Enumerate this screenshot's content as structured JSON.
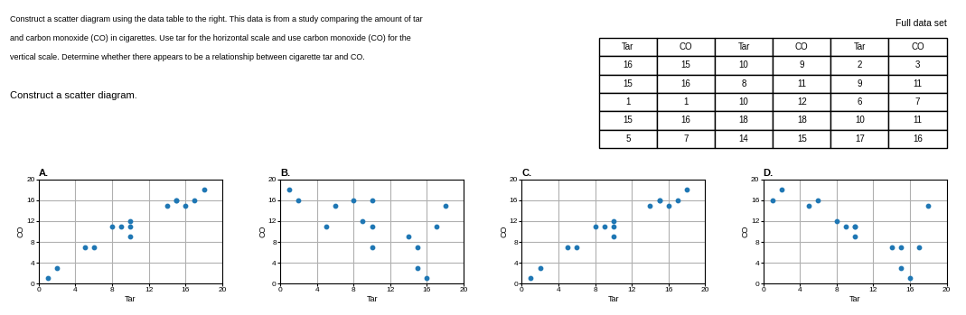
{
  "chart_data": [
    {
      "type": "text",
      "annotations": [
        "Construct a scatter diagram using the data table to the right. This data is from a study comparing the amount of tar",
        "and carbon monoxide (CO) in cigarettes. Use tar for the horizontal scale and use carbon monoxide (CO) for the",
        "vertical scale. Determine whether there appears to be a relationship between cigarette tar and CO.",
        "Construct a scatter diagram."
      ]
    },
    {
      "type": "table",
      "title": "Full data set",
      "categories": [
        "Tar",
        "CO",
        "Tar",
        "CO",
        "Tar",
        "CO"
      ],
      "values": [
        [
          16,
          15,
          10,
          9,
          2,
          3
        ],
        [
          15,
          16,
          8,
          11,
          9,
          11
        ],
        [
          1,
          1,
          10,
          12,
          6,
          7
        ],
        [
          15,
          16,
          18,
          18,
          10,
          11
        ],
        [
          5,
          7,
          14,
          15,
          17,
          16
        ]
      ]
    },
    {
      "type": "scatter",
      "title": "A.",
      "xlabel": "Tar",
      "ylabel": "CO",
      "x": [
        16,
        15,
        1,
        15,
        5,
        10,
        8,
        10,
        18,
        14,
        2,
        9,
        6,
        10,
        17
      ],
      "values": [
        15,
        16,
        1,
        16,
        7,
        9,
        11,
        12,
        18,
        15,
        3,
        11,
        7,
        11,
        16
      ],
      "xlim": [
        0,
        20
      ],
      "ylim": [
        0,
        20
      ],
      "xticks": [
        0,
        4,
        8,
        12,
        16,
        20
      ],
      "yticks": [
        0,
        4,
        8,
        12,
        16,
        20
      ],
      "grid": true
    },
    {
      "type": "scatter",
      "title": "B.",
      "xlabel": "Tar",
      "ylabel": "CO",
      "x": [
        2,
        6,
        9,
        10,
        10,
        5,
        8,
        14,
        15,
        16,
        15,
        17,
        18,
        1,
        10
      ],
      "values": [
        16,
        15,
        12,
        11,
        7,
        11,
        16,
        9,
        7,
        1,
        3,
        11,
        15,
        18,
        16
      ],
      "xlim": [
        0,
        20
      ],
      "ylim": [
        0,
        20
      ],
      "xticks": [
        0,
        4,
        8,
        12,
        16,
        20
      ],
      "yticks": [
        0,
        4,
        8,
        12,
        16,
        20
      ],
      "grid": true
    },
    {
      "type": "scatter",
      "title": "C.",
      "xlabel": "Tar",
      "ylabel": "CO",
      "x": [
        1,
        2,
        5,
        6,
        8,
        9,
        10,
        10,
        10,
        14,
        15,
        15,
        16,
        17,
        18
      ],
      "values": [
        1,
        3,
        7,
        7,
        11,
        11,
        9,
        11,
        12,
        15,
        16,
        16,
        15,
        16,
        18
      ],
      "xlim": [
        0,
        20
      ],
      "ylim": [
        0,
        20
      ],
      "xticks": [
        0,
        4,
        8,
        12,
        16,
        20
      ],
      "yticks": [
        0,
        4,
        8,
        12,
        16,
        20
      ],
      "grid": true
    },
    {
      "type": "scatter",
      "title": "D.",
      "xlabel": "Tar",
      "ylabel": "CO",
      "x": [
        2,
        1,
        5,
        6,
        8,
        9,
        10,
        10,
        10,
        14,
        15,
        15,
        16,
        17,
        18
      ],
      "values": [
        18,
        16,
        15,
        16,
        12,
        11,
        9,
        11,
        11,
        7,
        3,
        7,
        1,
        7,
        15
      ],
      "xlim": [
        0,
        20
      ],
      "ylim": [
        0,
        20
      ],
      "xticks": [
        0,
        4,
        8,
        12,
        16,
        20
      ],
      "yticks": [
        0,
        4,
        8,
        12,
        16,
        20
      ],
      "grid": true
    }
  ]
}
